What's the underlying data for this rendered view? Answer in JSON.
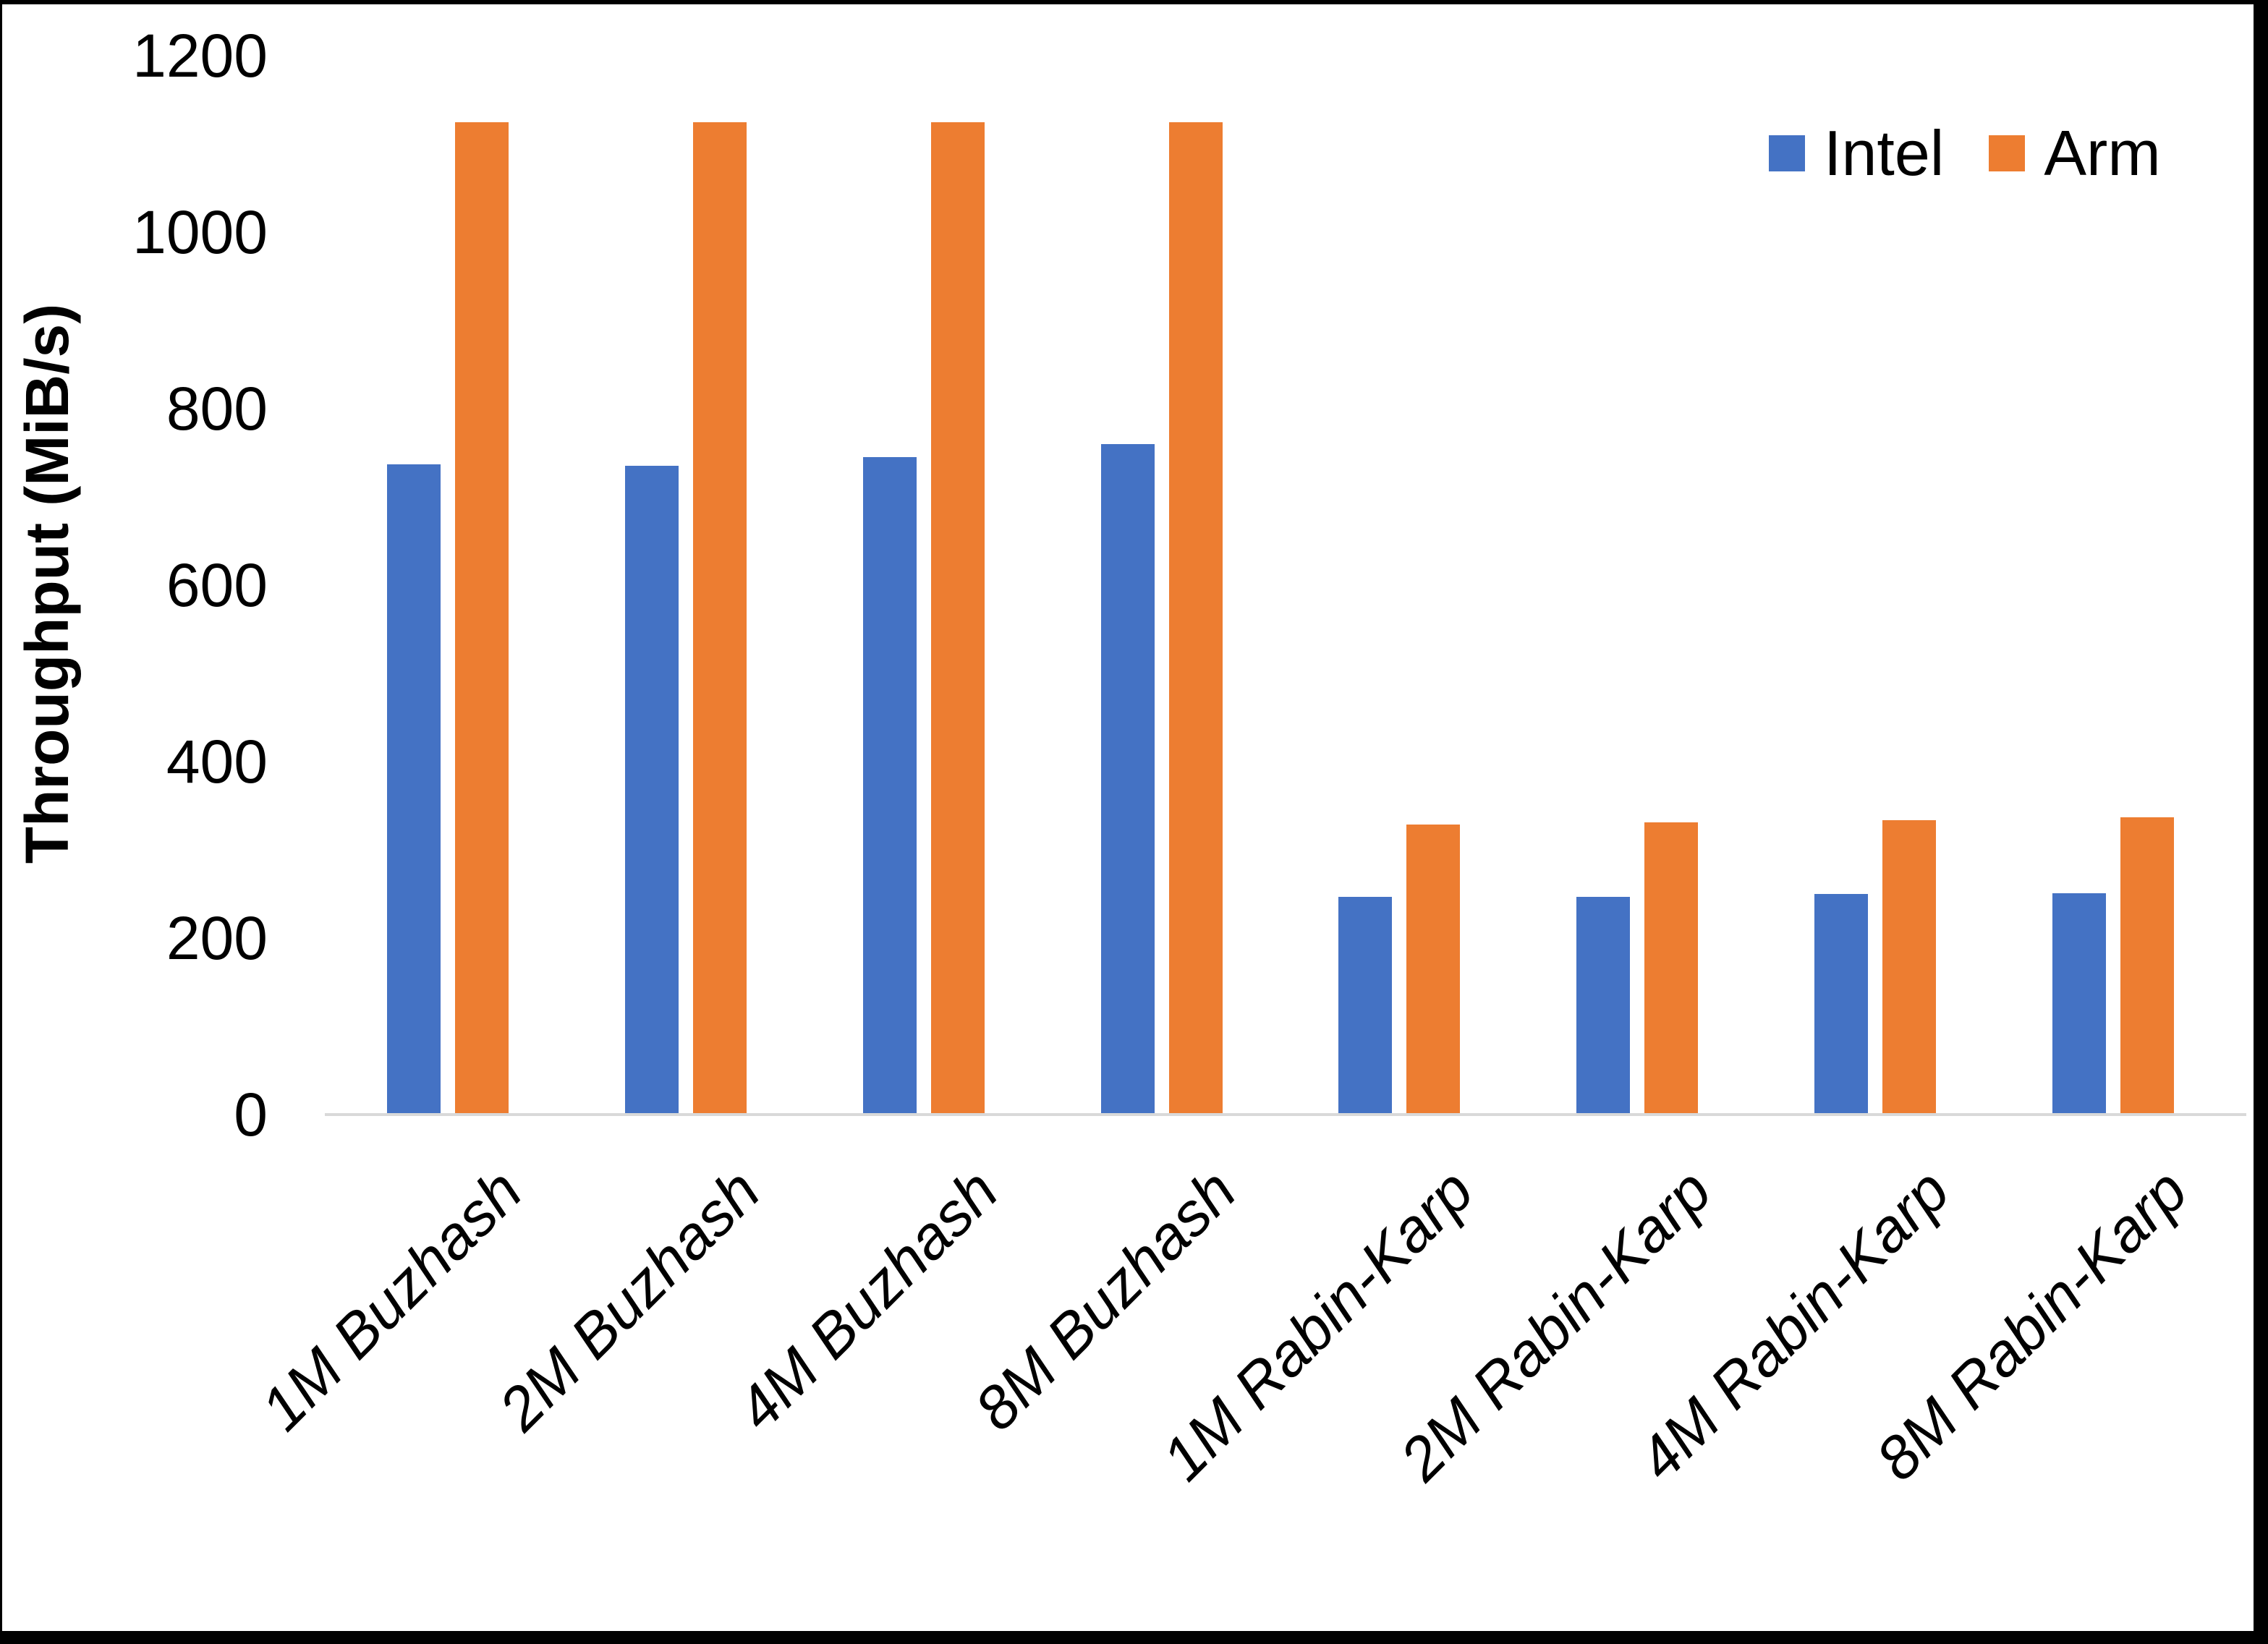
{
  "figure": {
    "background": "#ffffff",
    "border_color": "#000000"
  },
  "chart_data": {
    "type": "bar",
    "title": "",
    "xlabel": "",
    "ylabel": "Throughput (MiB/s)",
    "ylim": [
      0,
      1200
    ],
    "yticks": [
      0,
      200,
      400,
      600,
      800,
      1000,
      1200
    ],
    "grid": false,
    "axis_line_color": "#D9D9D9",
    "legend_position": "top-right",
    "categories": [
      "1M Buzhash",
      "2M Buzhash",
      "4M Buzhash",
      "8M Buzhash",
      "1M Rabin-Karp",
      "2M Rabin-Karp",
      "4M Rabin-Karp",
      "8M Rabin-Karp"
    ],
    "series": [
      {
        "name": "Intel",
        "color": "#4472C4",
        "values": [
          737,
          735,
          745,
          760,
          247,
          247,
          250,
          251
        ]
      },
      {
        "name": "Arm",
        "color": "#ED7D31",
        "values": [
          1125,
          1125,
          1125,
          1125,
          329,
          331,
          334,
          337
        ]
      }
    ]
  }
}
